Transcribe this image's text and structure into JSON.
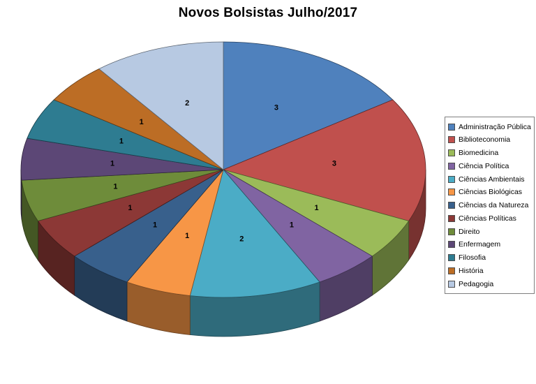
{
  "background_color": "#FFFFFF",
  "chart_data": {
    "type": "pie",
    "style": "3d",
    "title": "Novos Bolsistas Julho/2017",
    "categories": [
      "Administração Pública",
      "Biblioteconomia",
      "Biomedicina",
      "Ciência Política",
      "Ciências Ambientais",
      "Ciências Biológicas",
      "Ciências da Natureza",
      "Ciências Políticas",
      "Direito",
      "Enfermagem",
      "Filosofia",
      "História",
      "Pedagogia"
    ],
    "values": [
      3,
      3,
      1,
      1,
      2,
      1,
      1,
      1,
      1,
      1,
      1,
      1,
      2
    ],
    "colors": [
      "#4F81BD",
      "#C0504D",
      "#9BBB59",
      "#8064A2",
      "#4BACC6",
      "#F79646",
      "#38608C",
      "#8C3836",
      "#6E8C3A",
      "#5C4776",
      "#2E7C91",
      "#BC6D25",
      "#B7C9E2"
    ],
    "data_labels_shown": true,
    "legend_position": "right",
    "start_angle_deg": 0,
    "direction": "clockwise"
  }
}
